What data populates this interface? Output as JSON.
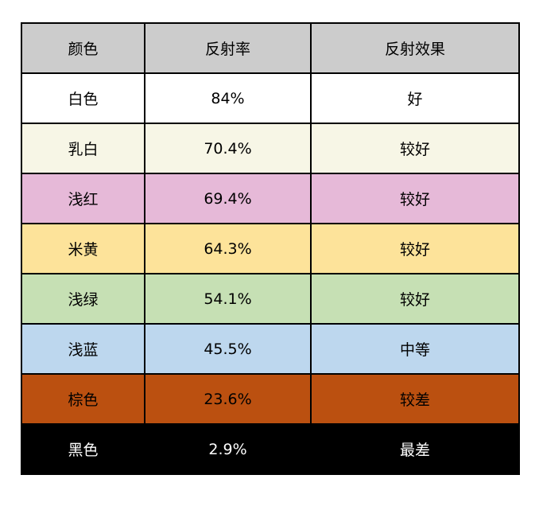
{
  "header": [
    "颜色",
    "反射率",
    "反射效果"
  ],
  "rows": [
    {
      "color": "白色",
      "reflectance": "84%",
      "effect": "好",
      "bg": "#ffffff",
      "fg": "#000000"
    },
    {
      "color": "乳白",
      "reflectance": "70.4%",
      "effect": "较好",
      "bg": "#f7f6e6",
      "fg": "#000000"
    },
    {
      "color": "浅红",
      "reflectance": "69.4%",
      "effect": "较好",
      "bg": "#e6b9d8",
      "fg": "#000000"
    },
    {
      "color": "米黄",
      "reflectance": "64.3%",
      "effect": "较好",
      "bg": "#fde39a",
      "fg": "#000000"
    },
    {
      "color": "浅绿",
      "reflectance": "54.1%",
      "effect": "较好",
      "bg": "#c6e0b4",
      "fg": "#000000"
    },
    {
      "color": "浅蓝",
      "reflectance": "45.5%",
      "effect": "中等",
      "bg": "#bdd7ee",
      "fg": "#000000"
    },
    {
      "color": "棕色",
      "reflectance": "23.6%",
      "effect": "较差",
      "bg": "#bb5010",
      "fg": "#000000"
    },
    {
      "color": "黑色",
      "reflectance": "2.9%",
      "effect": "最差",
      "bg": "#000000",
      "fg": "#ffffff"
    }
  ],
  "header_bg": "#cccccc"
}
